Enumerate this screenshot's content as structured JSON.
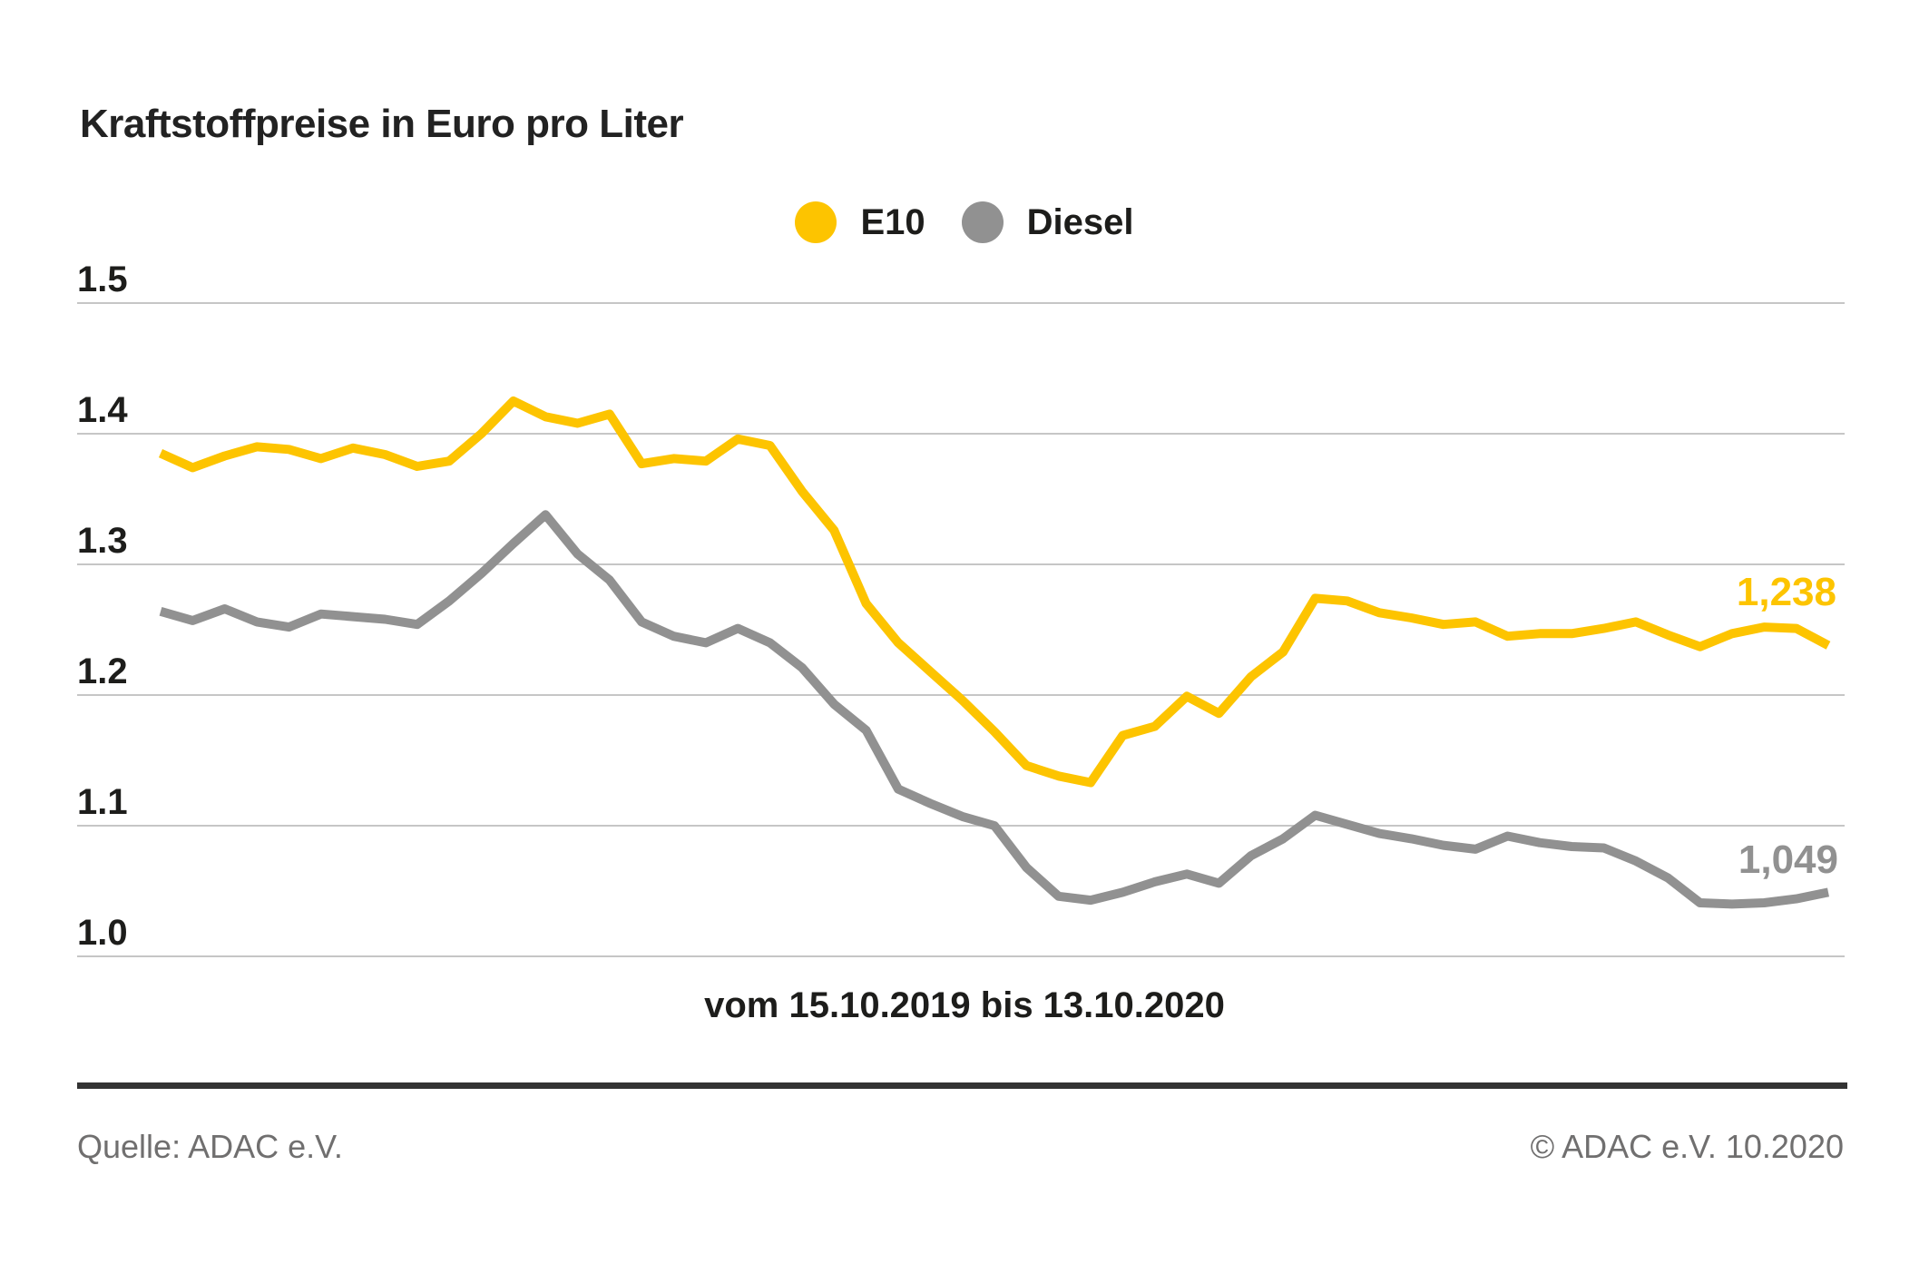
{
  "title": "Kraftstoffpreise in Euro pro Liter",
  "legend": [
    {
      "label": "E10",
      "color": "#FDC400"
    },
    {
      "label": "Diesel",
      "color": "#919191"
    }
  ],
  "caption": "vom 15.10.2019 bis 13.10.2020",
  "footer": {
    "source": "Quelle: ADAC e.V.",
    "copyright": "© ADAC e.V. 10.2020"
  },
  "chart_data": {
    "type": "line",
    "title": "Kraftstoffpreise in Euro pro Liter",
    "xlabel": "vom 15.10.2019 bis 13.10.2020",
    "ylabel": "Euro pro Liter",
    "x_start": "15.10.2019",
    "x_end": "13.10.2020",
    "x_interval": "weekly",
    "ylim": [
      0.97,
      1.53
    ],
    "yticks": [
      1.5,
      1.4,
      1.3,
      1.2,
      1.1,
      1.0
    ],
    "ytick_labels": [
      "1.5",
      "1.4",
      "1.3",
      "1.2",
      "1.1",
      "1.0"
    ],
    "grid": true,
    "grid_color": "#C6C6C6",
    "legend_position": "top-center",
    "series": [
      {
        "name": "E10",
        "color": "#FDC400",
        "end_label": "1,238",
        "end_value": 1.238,
        "values": [
          1.385,
          1.374,
          1.383,
          1.39,
          1.388,
          1.381,
          1.389,
          1.384,
          1.375,
          1.379,
          1.4,
          1.425,
          1.413,
          1.408,
          1.415,
          1.377,
          1.381,
          1.379,
          1.396,
          1.391,
          1.356,
          1.326,
          1.27,
          1.24,
          1.218,
          1.196,
          1.172,
          1.146,
          1.138,
          1.133,
          1.169,
          1.176,
          1.199,
          1.186,
          1.214,
          1.233,
          1.274,
          1.272,
          1.263,
          1.259,
          1.254,
          1.256,
          1.245,
          1.247,
          1.247,
          1.251,
          1.256,
          1.246,
          1.237,
          1.247,
          1.252,
          1.251,
          1.238
        ]
      },
      {
        "name": "Diesel",
        "color": "#919191",
        "end_label": "1,049",
        "end_value": 1.049,
        "values": [
          1.264,
          1.257,
          1.266,
          1.256,
          1.252,
          1.262,
          1.26,
          1.258,
          1.254,
          1.272,
          1.293,
          1.316,
          1.338,
          1.308,
          1.288,
          1.256,
          1.245,
          1.24,
          1.251,
          1.24,
          1.221,
          1.193,
          1.173,
          1.128,
          1.117,
          1.107,
          1.1,
          1.068,
          1.046,
          1.043,
          1.049,
          1.057,
          1.063,
          1.056,
          1.077,
          1.09,
          1.108,
          1.101,
          1.094,
          1.09,
          1.085,
          1.082,
          1.092,
          1.087,
          1.084,
          1.083,
          1.073,
          1.06,
          1.041,
          1.04,
          1.041,
          1.044,
          1.049
        ]
      }
    ]
  }
}
